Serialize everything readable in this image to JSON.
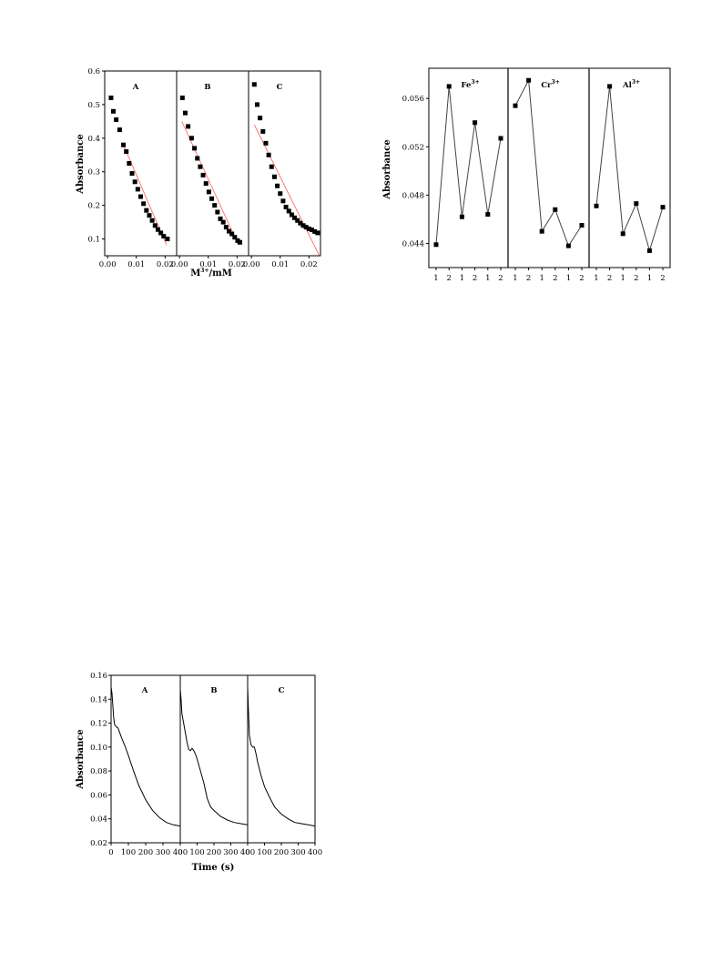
{
  "chart_data": [
    {
      "id": "fig1",
      "type": "scatter",
      "ylabel": "Absorbance",
      "xlabel_base": "M",
      "xlabel_sup": "3+",
      "xlabel_unit": "/mM",
      "ylim": [
        0.05,
        0.6
      ],
      "yticks": [
        0.1,
        0.2,
        0.3,
        0.4,
        0.5,
        0.6
      ],
      "xticks": [
        "0.00",
        "0.01",
        "0.02"
      ],
      "xlim": [
        -0.001,
        0.024
      ],
      "panels": [
        {
          "label": "A",
          "points": [
            [
              0.0012,
              0.52
            ],
            [
              0.002,
              0.48
            ],
            [
              0.003,
              0.455
            ],
            [
              0.0042,
              0.425
            ],
            [
              0.0055,
              0.38
            ],
            [
              0.0065,
              0.36
            ],
            [
              0.0075,
              0.325
            ],
            [
              0.0085,
              0.295
            ],
            [
              0.0095,
              0.27
            ],
            [
              0.0105,
              0.248
            ],
            [
              0.0115,
              0.226
            ],
            [
              0.0125,
              0.205
            ],
            [
              0.0135,
              0.185
            ],
            [
              0.0145,
              0.17
            ],
            [
              0.0155,
              0.155
            ],
            [
              0.0165,
              0.14
            ],
            [
              0.0175,
              0.128
            ],
            [
              0.0185,
              0.118
            ],
            [
              0.0195,
              0.108
            ],
            [
              0.0208,
              0.1
            ]
          ],
          "fit": [
            [
              0.0055,
              0.38
            ],
            [
              0.0205,
              0.082
            ]
          ]
        },
        {
          "label": "B",
          "points": [
            [
              0.001,
              0.52
            ],
            [
              0.002,
              0.475
            ],
            [
              0.003,
              0.435
            ],
            [
              0.0042,
              0.4
            ],
            [
              0.0052,
              0.37
            ],
            [
              0.0062,
              0.34
            ],
            [
              0.0072,
              0.315
            ],
            [
              0.0082,
              0.29
            ],
            [
              0.0092,
              0.265
            ],
            [
              0.0102,
              0.24
            ],
            [
              0.0112,
              0.22
            ],
            [
              0.0122,
              0.2
            ],
            [
              0.0132,
              0.18
            ],
            [
              0.0142,
              0.16
            ],
            [
              0.0152,
              0.15
            ],
            [
              0.0162,
              0.135
            ],
            [
              0.0172,
              0.123
            ],
            [
              0.0182,
              0.115
            ],
            [
              0.0192,
              0.105
            ],
            [
              0.0202,
              0.095
            ],
            [
              0.021,
              0.09
            ]
          ],
          "fit": [
            [
              0.0008,
              0.45
            ],
            [
              0.0205,
              0.082
            ]
          ]
        },
        {
          "label": "C",
          "points": [
            [
              0.001,
              0.56
            ],
            [
              0.002,
              0.5
            ],
            [
              0.003,
              0.46
            ],
            [
              0.004,
              0.42
            ],
            [
              0.005,
              0.385
            ],
            [
              0.006,
              0.35
            ],
            [
              0.007,
              0.315
            ],
            [
              0.008,
              0.285
            ],
            [
              0.009,
              0.258
            ],
            [
              0.01,
              0.235
            ],
            [
              0.011,
              0.213
            ],
            [
              0.012,
              0.195
            ],
            [
              0.013,
              0.183
            ],
            [
              0.014,
              0.172
            ],
            [
              0.015,
              0.163
            ],
            [
              0.016,
              0.155
            ],
            [
              0.017,
              0.147
            ],
            [
              0.018,
              0.14
            ],
            [
              0.019,
              0.135
            ],
            [
              0.02,
              0.13
            ],
            [
              0.021,
              0.127
            ],
            [
              0.022,
              0.122
            ],
            [
              0.023,
              0.118
            ]
          ],
          "fit": [
            [
              0.001,
              0.44
            ],
            [
              0.0235,
              0.052
            ]
          ]
        }
      ]
    },
    {
      "id": "fig2",
      "type": "line",
      "ylabel": "Absorbance",
      "ylim": [
        0.042,
        0.0585
      ],
      "yticks": [
        "0.044",
        "0.048",
        "0.052",
        "0.056"
      ],
      "xticks": [
        "1",
        "2",
        "1",
        "2",
        "1",
        "2"
      ],
      "panels": [
        {
          "ion": "Fe",
          "ion_sup": "3+",
          "values": [
            0.0439,
            0.057,
            0.0462,
            0.054,
            0.0464,
            0.0527
          ],
          "segments": [
            [
              0,
              1
            ],
            [
              1,
              2
            ],
            [
              2,
              3
            ],
            [
              3,
              4
            ],
            [
              4,
              5
            ]
          ]
        },
        {
          "ion": "Cr",
          "ion_sup": "3+",
          "values": [
            0.0554,
            0.0575,
            0.045,
            0.0468,
            0.0438,
            0.0455
          ],
          "segments": [
            [
              0,
              1
            ],
            [
              1,
              2
            ],
            [
              2,
              3
            ],
            [
              3,
              4
            ],
            [
              4,
              5
            ]
          ]
        },
        {
          "ion": "Al",
          "ion_sup": "3+",
          "values": [
            0.0471,
            0.057,
            0.0448,
            0.0473,
            0.0434,
            0.047
          ],
          "segments": [
            [
              0,
              1
            ],
            [
              1,
              2
            ],
            [
              2,
              3
            ],
            [
              3,
              4
            ],
            [
              4,
              5
            ]
          ]
        }
      ]
    },
    {
      "id": "fig3",
      "type": "line",
      "ylabel": "Absorbance",
      "xlabel": "Time (s)",
      "ylim": [
        0.02,
        0.16
      ],
      "yticks": [
        "0.02",
        "0.04",
        "0.06",
        "0.08",
        "0.10",
        "0.12",
        "0.14",
        "0.16"
      ],
      "xlim": [
        0,
        400
      ],
      "xticks": [
        "0",
        "100",
        "200",
        "300",
        "400"
      ],
      "panels": [
        {
          "label": "A",
          "x": [
            0,
            5,
            10,
            15,
            20,
            30,
            40,
            50,
            60,
            80,
            100,
            130,
            160,
            200,
            240,
            280,
            320,
            360,
            400
          ],
          "y": [
            0.15,
            0.145,
            0.135,
            0.125,
            0.119,
            0.117,
            0.116,
            0.112,
            0.108,
            0.101,
            0.093,
            0.08,
            0.068,
            0.056,
            0.047,
            0.041,
            0.037,
            0.035,
            0.034
          ]
        },
        {
          "label": "B",
          "x": [
            0,
            5,
            10,
            20,
            30,
            40,
            50,
            60,
            70,
            80,
            90,
            100,
            120,
            140,
            160,
            180,
            200,
            240,
            280,
            320,
            360,
            400
          ],
          "y": [
            0.148,
            0.14,
            0.128,
            0.12,
            0.112,
            0.104,
            0.098,
            0.097,
            0.099,
            0.097,
            0.094,
            0.09,
            0.08,
            0.07,
            0.057,
            0.05,
            0.047,
            0.042,
            0.039,
            0.037,
            0.036,
            0.035
          ]
        },
        {
          "label": "C",
          "x": [
            0,
            5,
            10,
            20,
            30,
            40,
            50,
            60,
            80,
            100,
            130,
            160,
            200,
            240,
            280,
            320,
            360,
            400
          ],
          "y": [
            0.15,
            0.13,
            0.11,
            0.102,
            0.1,
            0.1,
            0.094,
            0.087,
            0.076,
            0.067,
            0.058,
            0.05,
            0.044,
            0.04,
            0.037,
            0.036,
            0.035,
            0.034
          ]
        }
      ]
    }
  ]
}
